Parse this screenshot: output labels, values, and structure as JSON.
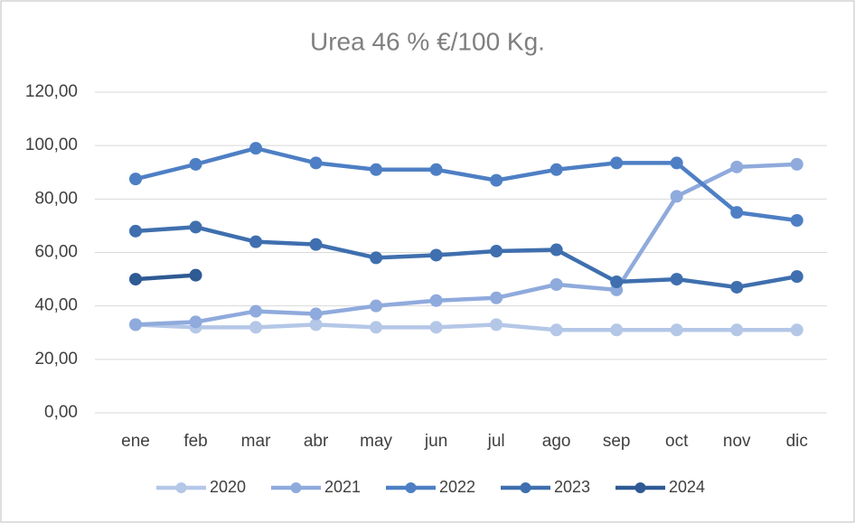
{
  "chart_data": {
    "type": "line",
    "title": "Urea 46 % €/100 Kg.",
    "categories": [
      "ene",
      "feb",
      "mar",
      "abr",
      "may",
      "jun",
      "jul",
      "ago",
      "sep",
      "oct",
      "nov",
      "dic"
    ],
    "series": [
      {
        "name": "2020",
        "color": "#b4c7e7",
        "values": [
          33,
          32,
          32,
          33,
          32,
          32,
          33,
          31,
          31,
          31,
          31,
          31
        ]
      },
      {
        "name": "2021",
        "color": "#8faadc",
        "values": [
          33,
          34,
          38,
          37,
          40,
          42,
          43,
          48,
          46,
          81,
          92,
          93
        ]
      },
      {
        "name": "2022",
        "color": "#4e7fc4",
        "values": [
          87.5,
          93,
          99,
          93.5,
          91,
          91,
          87,
          91,
          93.5,
          93.5,
          75,
          72
        ]
      },
      {
        "name": "2023",
        "color": "#3f6fae",
        "values": [
          68,
          69.5,
          64,
          63,
          58,
          59,
          60.5,
          61,
          49,
          50,
          47,
          51
        ]
      },
      {
        "name": "2024",
        "color": "#2f5a94",
        "values": [
          50,
          51.5,
          null,
          null,
          null,
          null,
          null,
          null,
          null,
          null,
          null,
          null
        ]
      }
    ],
    "ylim": [
      0,
      120
    ],
    "yticks": [
      {
        "value": 0,
        "label": "0,00"
      },
      {
        "value": 20,
        "label": "20,00"
      },
      {
        "value": 40,
        "label": "40,00"
      },
      {
        "value": 60,
        "label": "60,00"
      },
      {
        "value": 80,
        "label": "80,00"
      },
      {
        "value": 100,
        "label": "100,00"
      },
      {
        "value": 120,
        "label": "120,00"
      }
    ],
    "grid": true,
    "legend": "bottom"
  }
}
